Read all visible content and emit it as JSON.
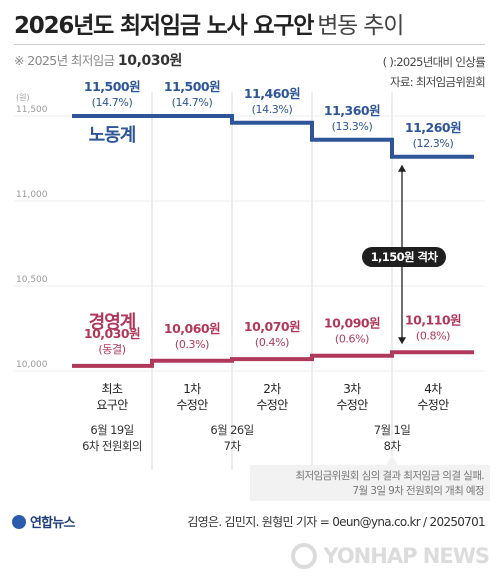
{
  "header": {
    "title_main": "2026년도 최저임금 노사 요구안",
    "title_sub": "변동 추이",
    "baseline_prefix": "※ 2025년 최저임금",
    "baseline_value": "10,030원",
    "paren_note": "( ):2025년대비 인상률",
    "source": "자료: 최저임금위원회"
  },
  "chart_data": {
    "type": "line",
    "y_tick_labels": [
      "11,500",
      "11,000",
      "10,500",
      "10,000"
    ],
    "ylim": [
      10000,
      11500
    ],
    "y_unit_label": "(원)",
    "categories": [
      {
        "label_lines": [
          "최초",
          "요구안"
        ],
        "date": "6월 19일",
        "meeting": "6차 전원회의"
      },
      {
        "label_lines": [
          "1차",
          "수정안"
        ],
        "date": "",
        "meeting": ""
      },
      {
        "label_lines": [
          "2차",
          "수정안"
        ],
        "date": "6월 26일",
        "meeting": "7차"
      },
      {
        "label_lines": [
          "3차",
          "수정안"
        ],
        "date": "",
        "meeting": ""
      },
      {
        "label_lines": [
          "4차",
          "수정안"
        ],
        "date": "7월 1일",
        "meeting": "8차"
      }
    ],
    "series": [
      {
        "name": "노동계",
        "color": "#2d5597",
        "values": [
          11500,
          11500,
          11460,
          11360,
          11260
        ],
        "value_labels": [
          "11,500원",
          "11,500원",
          "11,460원",
          "11,360원",
          "11,260원"
        ],
        "rate_labels": [
          "(14.7%)",
          "(14.7%)",
          "(14.3%)",
          "(13.3%)",
          "(12.3%)"
        ]
      },
      {
        "name": "경영계",
        "color": "#b0395b",
        "values": [
          10030,
          10060,
          10070,
          10090,
          10110
        ],
        "value_labels": [
          "10,030원",
          "10,060원",
          "10,070원",
          "10,090원",
          "10,110원"
        ],
        "rate_labels": [
          "(동결)",
          "(0.3%)",
          "(0.4%)",
          "(0.6%)",
          "(0.8%)"
        ]
      }
    ],
    "gap_annotation": "1,150원 격차",
    "note_lines": [
      "최저임금위원회 심의 결과 최저임금 의결 실패.",
      "7월 3일 9차 전원회의 개최 예정"
    ]
  },
  "footer": {
    "logo_text": "연합뉴스",
    "credit": "김영은. 김민지. 원형민 기자 = 0eun@yna.co.kr / 20250701",
    "watermark": "YONHAP NEWS"
  }
}
